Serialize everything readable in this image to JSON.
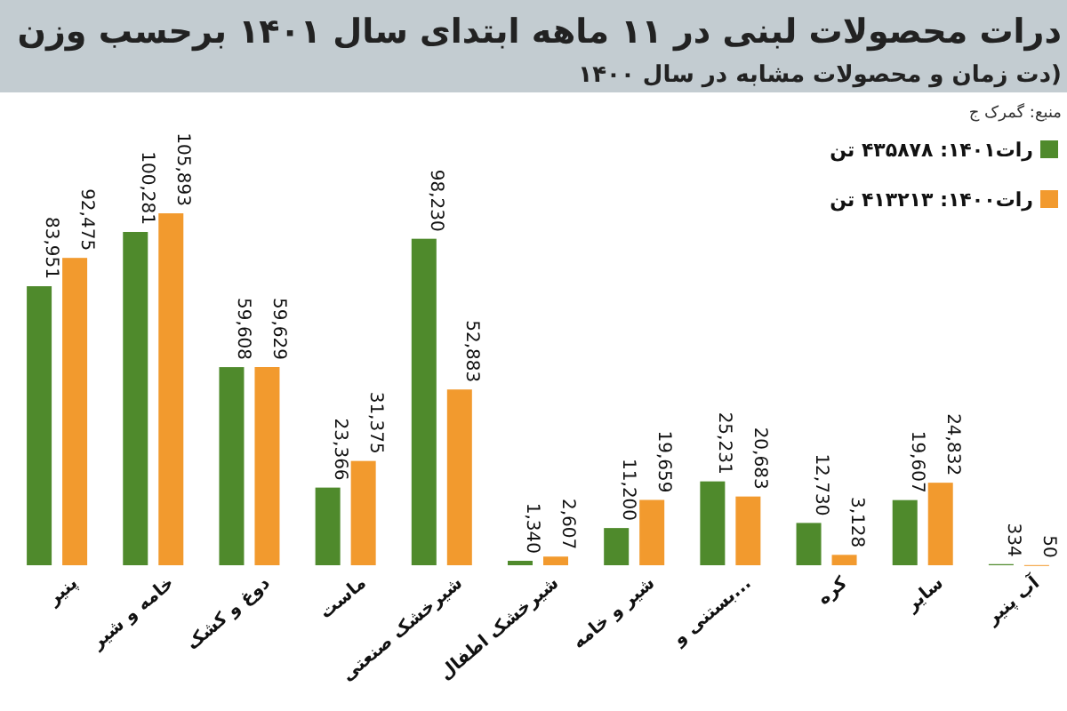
{
  "chart_data": {
    "type": "bar",
    "title": "درات محصولات لبنی در ۱۱ ماهه ابتدای سال ۱۴۰۱ برحسب وزن",
    "subtitle": "دت زمان و محصولات مشابه در سال ۱۴۰۰)",
    "annotations": [
      "منبع: گمرک ج"
    ],
    "categories": [
      "پنیر",
      "خامه و شیر",
      "دوغ و کشک",
      "ماست",
      "شیرخشک صنعتی",
      "شیرخشک اطفال",
      "شیر و خامه",
      "بستنی و...",
      "کره",
      "سایر",
      "آب پنیر"
    ],
    "series": [
      {
        "name": "رات۱۴۰۱: ۴۳۵۸۷۸ تن",
        "color": "#4f8a2c",
        "values": [
          83951,
          100281,
          59608,
          23366,
          98230,
          1340,
          11200,
          25231,
          12730,
          19607,
          334
        ],
        "value_labels": [
          "83,951",
          "100,281",
          "59,608",
          "23,366",
          "98,230",
          "1,340",
          "11,200",
          "25,231",
          "12,730",
          "19,607",
          "334"
        ]
      },
      {
        "name": "رات۱۴۰۰: ۴۱۳۲۱۳ تن",
        "color": "#f29a2e",
        "values": [
          92475,
          105893,
          59629,
          31375,
          52883,
          2607,
          19659,
          20683,
          3128,
          24832,
          50
        ],
        "value_labels": [
          "92,475",
          "105,893",
          "59,629",
          "31,375",
          "52,883",
          "2,607",
          "19,659",
          "20,683",
          "3,128",
          "24,832",
          "50"
        ]
      }
    ],
    "legend": "top right"
  }
}
